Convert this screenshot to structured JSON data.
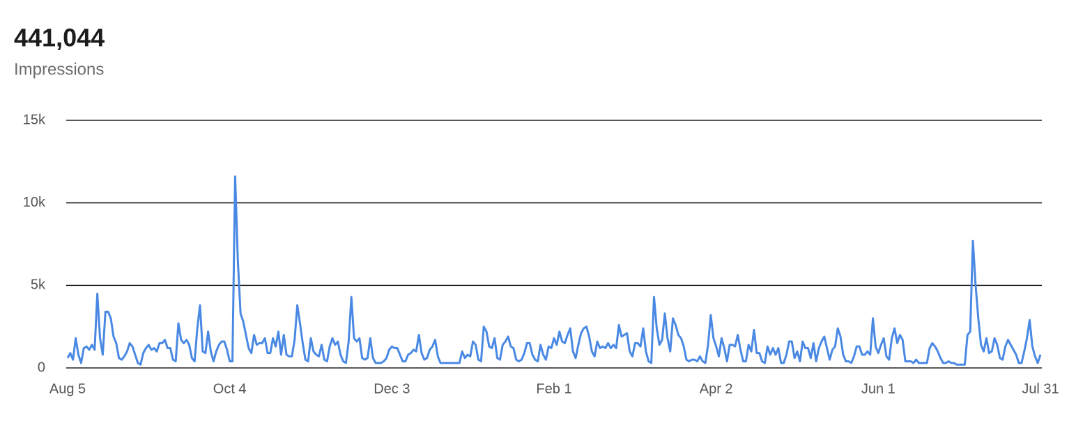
{
  "chart_data": {
    "type": "line",
    "title": "441,044",
    "subtitle": "Impressions",
    "categories": [
      "Aug 5",
      null,
      null,
      null,
      null,
      null,
      null,
      null,
      null,
      null,
      null,
      null,
      null,
      null,
      null,
      null,
      null,
      null,
      null,
      null,
      null,
      null,
      null,
      null,
      null,
      null,
      null,
      null,
      null,
      null,
      null,
      null,
      null,
      null,
      null,
      null,
      null,
      null,
      null,
      null,
      null,
      null,
      null,
      null,
      null,
      null,
      null,
      null,
      null,
      null,
      null,
      null,
      null,
      null,
      null,
      null,
      null,
      null,
      null,
      null,
      "Oct 4",
      null,
      null,
      null,
      null,
      null,
      null,
      null,
      null,
      null,
      null,
      null,
      null,
      null,
      null,
      null,
      null,
      null,
      null,
      null,
      null,
      null,
      null,
      null,
      null,
      null,
      null,
      null,
      null,
      null,
      null,
      null,
      null,
      null,
      null,
      null,
      null,
      null,
      null,
      null,
      null,
      null,
      null,
      null,
      null,
      null,
      null,
      null,
      null,
      null,
      null,
      null,
      null,
      null,
      null,
      null,
      null,
      null,
      null,
      null,
      "Dec 3",
      null,
      null,
      null,
      null,
      null,
      null,
      null,
      null,
      null,
      null,
      null,
      null,
      null,
      null,
      null,
      null,
      null,
      null,
      null,
      null,
      null,
      null,
      null,
      null,
      null,
      null,
      null,
      null,
      null,
      null,
      null,
      null,
      null,
      null,
      null,
      null,
      null,
      null,
      null,
      null,
      null,
      null,
      null,
      null,
      null,
      null,
      null,
      null,
      null,
      null,
      null,
      null,
      null,
      null,
      null,
      null,
      null,
      null,
      null,
      "Feb 1",
      null,
      null,
      null,
      null,
      null,
      null,
      null,
      null,
      null,
      null,
      null,
      null,
      null,
      null,
      null,
      null,
      null,
      null,
      null,
      null,
      null,
      null,
      null,
      null,
      null,
      null,
      null,
      null,
      null,
      null,
      null,
      null,
      null,
      null,
      null,
      null,
      null,
      null,
      null,
      null,
      null,
      null,
      null,
      null,
      null,
      null,
      null,
      null,
      null,
      null,
      null,
      null,
      null,
      null,
      null,
      null,
      null,
      null,
      null,
      "Apr 2",
      null,
      null,
      null,
      null,
      null,
      null,
      null,
      null,
      null,
      null,
      null,
      null,
      null,
      null,
      null,
      null,
      null,
      null,
      null,
      null,
      null,
      null,
      null,
      null,
      null,
      null,
      null,
      null,
      null,
      null,
      null,
      null,
      null,
      null,
      null,
      null,
      null,
      null,
      null,
      null,
      null,
      null,
      null,
      null,
      null,
      null,
      null,
      null,
      null,
      null,
      null,
      null,
      null,
      null,
      null,
      null,
      null,
      null,
      null,
      "Jun 1",
      null,
      null,
      null,
      null,
      null,
      null,
      null,
      null,
      null,
      null,
      null,
      null,
      null,
      null,
      null,
      null,
      null,
      null,
      null,
      null,
      null,
      null,
      null,
      null,
      null,
      null,
      null,
      null,
      null,
      null,
      null,
      null,
      null,
      null,
      null,
      null,
      null,
      null,
      null,
      null,
      null,
      null,
      null,
      null,
      null,
      null,
      null,
      null,
      null,
      null,
      null,
      null,
      null,
      null,
      null,
      null,
      null,
      null,
      null,
      "Jul 31"
    ],
    "series": [
      {
        "name": "Impressions",
        "color": "#4a89e3",
        "values": [
          600,
          900,
          500,
          1800,
          800,
          300,
          1200,
          1300,
          1100,
          1400,
          1100,
          4500,
          1800,
          800,
          3400,
          3400,
          3000,
          1900,
          1500,
          600,
          500,
          700,
          1000,
          1500,
          1300,
          800,
          300,
          200,
          900,
          1200,
          1400,
          1100,
          1200,
          1000,
          1500,
          1500,
          1700,
          1200,
          1200,
          500,
          400,
          2700,
          1700,
          1500,
          1700,
          1400,
          600,
          400,
          2400,
          3800,
          1000,
          900,
          2200,
          1000,
          400,
          1000,
          1400,
          1600,
          1600,
          1100,
          400,
          400,
          11600,
          6500,
          3300,
          2800,
          2000,
          1200,
          900,
          2000,
          1400,
          1500,
          1500,
          1800,
          900,
          900,
          1800,
          1300,
          2200,
          800,
          2000,
          800,
          700,
          700,
          1700,
          3800,
          2700,
          1500,
          500,
          400,
          1800,
          1000,
          800,
          700,
          1400,
          500,
          400,
          1300,
          1800,
          1400,
          1600,
          800,
          400,
          300,
          1600,
          4300,
          1800,
          1600,
          1800,
          600,
          500,
          600,
          1800,
          600,
          300,
          300,
          300,
          400,
          600,
          1100,
          1300,
          1200,
          1200,
          800,
          400,
          400,
          800,
          900,
          1100,
          1000,
          2000,
          900,
          500,
          600,
          1100,
          1300,
          1700,
          700,
          300,
          300,
          300,
          300,
          300,
          300,
          300,
          300,
          1000,
          600,
          800,
          700,
          1600,
          1400,
          500,
          400,
          2500,
          2200,
          1300,
          1200,
          1800,
          600,
          500,
          1400,
          1600,
          1900,
          1300,
          1200,
          500,
          400,
          500,
          900,
          1500,
          1500,
          800,
          500,
          400,
          1400,
          800,
          500,
          1300,
          1200,
          1800,
          1400,
          2200,
          1600,
          1500,
          2000,
          2400,
          1000,
          600,
          1400,
          2100,
          2400,
          2500,
          1900,
          1000,
          700,
          1600,
          1200,
          1300,
          1200,
          1500,
          1200,
          1400,
          1200,
          2600,
          1900,
          2000,
          2100,
          1000,
          700,
          1500,
          1500,
          1300,
          2400,
          1000,
          400,
          300,
          4300,
          2400,
          1400,
          1700,
          3300,
          1800,
          1000,
          3000,
          2600,
          2000,
          1800,
          1300,
          500,
          400,
          500,
          500,
          400,
          700,
          400,
          300,
          1400,
          3200,
          1800,
          1300,
          700,
          1800,
          1200,
          400,
          1400,
          1400,
          1300,
          2000,
          1100,
          400,
          400,
          1400,
          1000,
          2300,
          900,
          900,
          400,
          300,
          1300,
          800,
          1200,
          800,
          1200,
          300,
          300,
          800,
          1600,
          1600,
          600,
          1000,
          400,
          1600,
          1200,
          1200,
          600,
          1500,
          400,
          1200,
          1600,
          1900,
          1200,
          500,
          1100,
          1300,
          2400,
          1900,
          800,
          400,
          400,
          300,
          700,
          1300,
          1300,
          800,
          800,
          1000,
          800,
          3000,
          1300,
          900,
          1400,
          1800,
          700,
          500,
          1800,
          2400,
          1500,
          2000,
          1700,
          400,
          400,
          400,
          300,
          500,
          300,
          300,
          300,
          300,
          1200,
          1500,
          1300,
          1000,
          600,
          300,
          300,
          400,
          300,
          300,
          200,
          200,
          200,
          200,
          2000,
          2200,
          7700,
          5000,
          3000,
          1400,
          1000,
          1800,
          900,
          1000,
          1800,
          1400,
          600,
          500,
          1300,
          1700,
          1400,
          1100,
          800,
          300,
          300,
          1000,
          1800,
          2900,
          1300,
          700,
          300,
          800
        ]
      }
    ],
    "ylim": [
      0,
      15000
    ],
    "yticks": [
      0,
      {
        "value": 5000,
        "label": "5k"
      },
      {
        "value": 10000,
        "label": "10k"
      },
      {
        "value": 15000,
        "label": "15k"
      }
    ],
    "grid": true
  }
}
